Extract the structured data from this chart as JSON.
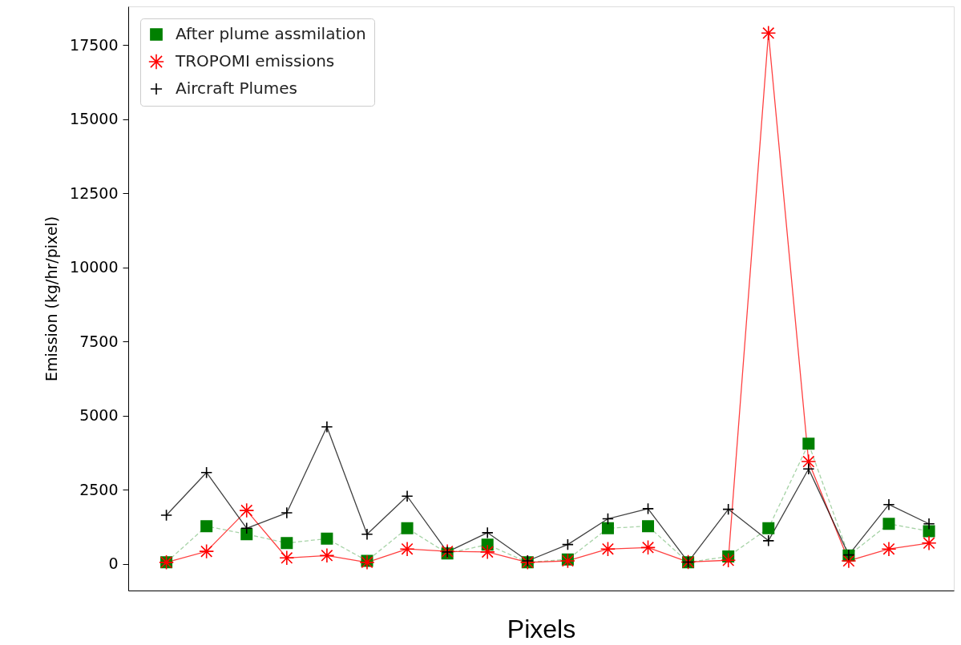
{
  "chart_data": {
    "type": "line",
    "xlabel": "Pixels",
    "ylabel": "Emission (kg/hr/pixel)",
    "categories": [
      null,
      null,
      null,
      null,
      null,
      null,
      null,
      null,
      null,
      null,
      null,
      null,
      null,
      null,
      null,
      null,
      null,
      null,
      null,
      null
    ],
    "ylim": [
      -900,
      18800
    ],
    "yticks": [
      0,
      2500,
      5000,
      7500,
      10000,
      12500,
      15000,
      17500
    ],
    "grid": false,
    "legend": "top left",
    "series": [
      {
        "name": "After plume assmilation",
        "color": "#008000",
        "marker": "square",
        "line_style": "dashed",
        "values": [
          50,
          1270,
          1000,
          700,
          850,
          100,
          1200,
          350,
          650,
          50,
          150,
          1200,
          1270,
          50,
          250,
          1200,
          4050,
          280,
          1350,
          1100
        ]
      },
      {
        "name": "TROPOMI emissions",
        "color": "#ff0000",
        "marker": "cross",
        "line_style": "solid",
        "values": [
          50,
          420,
          1800,
          200,
          280,
          50,
          500,
          420,
          400,
          50,
          100,
          500,
          550,
          60,
          120,
          17900,
          3450,
          100,
          500,
          700
        ]
      },
      {
        "name": "Aircraft Plumes",
        "color": "#000000",
        "marker": "plus",
        "line_style": "solid",
        "values": [
          1640,
          3080,
          1200,
          1720,
          4620,
          1000,
          2280,
          400,
          1050,
          100,
          650,
          1520,
          1860,
          60,
          1840,
          780,
          3200,
          300,
          2000,
          1350
        ]
      }
    ]
  }
}
